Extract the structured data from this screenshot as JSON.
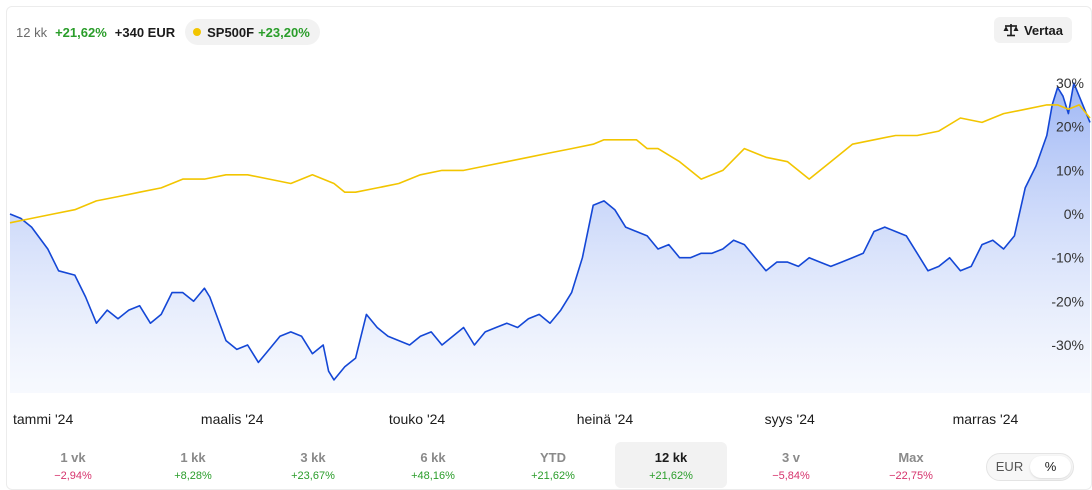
{
  "header": {
    "period": "12 kk",
    "return": "+21,62%",
    "absolute": "+340 EUR"
  },
  "benchmark": {
    "name": "SP500F",
    "return": "+23,20%",
    "dot_color": "#f2c500"
  },
  "compare": {
    "label": "Vertaa",
    "icon": "scale-icon"
  },
  "tabs": [
    {
      "label": "1 vk",
      "change": "−2,94%",
      "sign": "neg"
    },
    {
      "label": "1 kk",
      "change": "+8,28%",
      "sign": "pos"
    },
    {
      "label": "3 kk",
      "change": "+23,67%",
      "sign": "pos"
    },
    {
      "label": "6 kk",
      "change": "+48,16%",
      "sign": "pos"
    },
    {
      "label": "YTD",
      "change": "+21,62%",
      "sign": "pos"
    },
    {
      "label": "12 kk",
      "change": "+21,62%",
      "sign": "pos",
      "active": true
    },
    {
      "label": "3 v",
      "change": "−5,84%",
      "sign": "neg"
    },
    {
      "label": "Max",
      "change": "−22,75%",
      "sign": "neg"
    }
  ],
  "unit_toggle": {
    "options": [
      "EUR",
      "%"
    ],
    "selected": "%"
  },
  "colors": {
    "positive": "#2a9d2a",
    "negative": "#d6336c",
    "fund_line": "#1447d6",
    "benchmark_line": "#f2c500"
  },
  "chart_data": {
    "type": "line",
    "x_tick_labels": [
      "tammi '24",
      "maalis '24",
      "touko '24",
      "heinä '24",
      "syys '24",
      "marras '24"
    ],
    "x_range": [
      "2024-01",
      "2024-12"
    ],
    "y_tick_labels": [
      "30%",
      "20%",
      "10%",
      "0%",
      "-10%",
      "-20%",
      "-30%"
    ],
    "y_ticks": [
      30,
      20,
      10,
      0,
      -10,
      -20,
      -30
    ],
    "ylim": [
      -41,
      33
    ],
    "grid": false,
    "fill_under_fund": true,
    "series": [
      {
        "key": "fund",
        "color": "#1447d6",
        "x": [
          0,
          0.01,
          0.02,
          0.035,
          0.045,
          0.06,
          0.07,
          0.08,
          0.09,
          0.1,
          0.11,
          0.12,
          0.13,
          0.14,
          0.15,
          0.16,
          0.17,
          0.18,
          0.185,
          0.2,
          0.21,
          0.22,
          0.23,
          0.24,
          0.25,
          0.26,
          0.27,
          0.28,
          0.29,
          0.295,
          0.3,
          0.31,
          0.32,
          0.33,
          0.34,
          0.35,
          0.36,
          0.37,
          0.38,
          0.39,
          0.4,
          0.41,
          0.42,
          0.43,
          0.44,
          0.45,
          0.46,
          0.47,
          0.48,
          0.49,
          0.5,
          0.51,
          0.52,
          0.53,
          0.54,
          0.55,
          0.56,
          0.57,
          0.58,
          0.59,
          0.6,
          0.61,
          0.62,
          0.63,
          0.64,
          0.65,
          0.66,
          0.67,
          0.68,
          0.69,
          0.7,
          0.71,
          0.72,
          0.73,
          0.74,
          0.75,
          0.76,
          0.77,
          0.78,
          0.79,
          0.8,
          0.81,
          0.82,
          0.83,
          0.84,
          0.85,
          0.86,
          0.87,
          0.88,
          0.89,
          0.9,
          0.91,
          0.92,
          0.93,
          0.94,
          0.95,
          0.96,
          0.965,
          0.97,
          0.975,
          0.98,
          0.985,
          0.99,
          1.0
        ],
        "y": [
          0,
          -1,
          -3,
          -8,
          -13,
          -14,
          -19,
          -25,
          -22,
          -24,
          -22,
          -21,
          -25,
          -23,
          -18,
          -18,
          -20,
          -17,
          -19,
          -29,
          -31,
          -30,
          -34,
          -31,
          -28,
          -27,
          -28,
          -32,
          -30,
          -36,
          -38,
          -35,
          -33,
          -23,
          -26,
          -28,
          -29,
          -30,
          -28,
          -27,
          -30,
          -28,
          -26,
          -30,
          -27,
          -26,
          -25,
          -26,
          -24,
          -23,
          -25,
          -22,
          -18,
          -10,
          2,
          3,
          1,
          -3,
          -4,
          -5,
          -8,
          -7,
          -10,
          -10,
          -9,
          -9,
          -8,
          -6,
          -7,
          -10,
          -13,
          -11,
          -11,
          -12,
          -10,
          -11,
          -12,
          -11,
          -10,
          -9,
          -4,
          -3,
          -4,
          -5,
          -9,
          -13,
          -12,
          -10,
          -13,
          -12,
          -7,
          -6,
          -8,
          -5,
          6,
          11,
          18,
          25,
          29,
          27,
          23,
          30,
          27,
          21
        ]
      },
      {
        "key": "benchmark",
        "name": "SP500F",
        "color": "#f2c500",
        "x": [
          0,
          0.02,
          0.04,
          0.06,
          0.08,
          0.1,
          0.12,
          0.14,
          0.16,
          0.18,
          0.2,
          0.22,
          0.24,
          0.26,
          0.28,
          0.3,
          0.31,
          0.32,
          0.34,
          0.36,
          0.38,
          0.4,
          0.42,
          0.44,
          0.46,
          0.48,
          0.5,
          0.52,
          0.54,
          0.55,
          0.56,
          0.58,
          0.59,
          0.6,
          0.62,
          0.64,
          0.66,
          0.68,
          0.7,
          0.72,
          0.74,
          0.76,
          0.78,
          0.8,
          0.82,
          0.84,
          0.86,
          0.88,
          0.9,
          0.92,
          0.94,
          0.96,
          0.97,
          0.98,
          0.99,
          1.0
        ],
        "y": [
          -2,
          -1,
          0,
          1,
          3,
          4,
          5,
          6,
          8,
          8,
          9,
          9,
          8,
          7,
          9,
          7,
          5,
          5,
          6,
          7,
          9,
          10,
          10,
          11,
          12,
          13,
          14,
          15,
          16,
          17,
          17,
          17,
          15,
          15,
          12,
          8,
          10,
          15,
          13,
          12,
          8,
          12,
          16,
          17,
          18,
          18,
          19,
          22,
          21,
          23,
          24,
          25,
          25,
          24,
          25,
          22
        ]
      }
    ]
  }
}
